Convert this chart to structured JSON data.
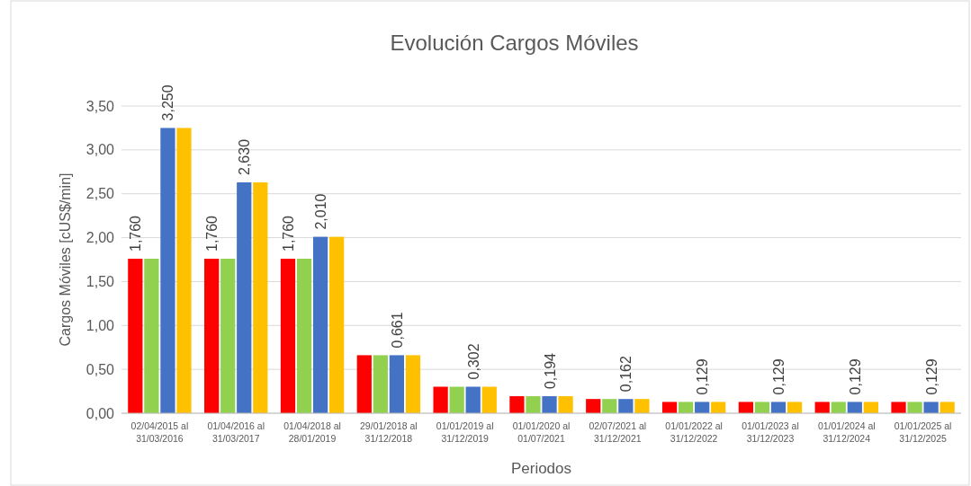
{
  "chart_data": {
    "type": "bar",
    "title": "Evolución Cargos Móviles",
    "xlabel": "Periodos",
    "ylabel": "Cargos Móviles [cUS$/min]",
    "categories": [
      "02/04/2015 al\n31/03/2016",
      "01/04/2016 al\n31/03/2017",
      "01/04/2018 al\n28/01/2019",
      "29/01/2018 al\n31/12/2018",
      "01/01/2019 al\n31/12/2019",
      "01/01/2020 al\n01/07/2021",
      "02/07/2021 al\n31/12/2021",
      "01/01/2022 al\n31/12/2022",
      "01/01/2023 al\n31/12/2023",
      "01/01/2024 al\n31/12/2024",
      "01/01/2025 al\n31/12/2025"
    ],
    "series": [
      {
        "color": "#ff0000",
        "values": [
          1.76,
          1.76,
          1.76,
          0.661,
          0.302,
          0.194,
          0.162,
          0.129,
          0.129,
          0.129,
          0.129
        ],
        "value_labels": [
          "1,760",
          "1,760",
          "1,760",
          null,
          null,
          null,
          null,
          null,
          null,
          null,
          null
        ]
      },
      {
        "color": "#92d050",
        "values": [
          1.76,
          1.76,
          1.76,
          0.661,
          0.302,
          0.194,
          0.162,
          0.129,
          0.129,
          0.129,
          0.129
        ]
      },
      {
        "color": "#4472c4",
        "values": [
          3.25,
          2.63,
          2.01,
          0.661,
          0.302,
          0.194,
          0.162,
          0.129,
          0.129,
          0.129,
          0.129
        ],
        "value_labels": [
          "3,250",
          "2,630",
          "2,010",
          "0,661",
          "0,302",
          "0,194",
          "0,162",
          "0,129",
          "0,129",
          "0,129",
          "0,129"
        ]
      },
      {
        "color": "#ffc000",
        "values": [
          3.25,
          2.63,
          2.01,
          0.661,
          0.302,
          0.194,
          0.162,
          0.129,
          0.129,
          0.129,
          0.129
        ]
      }
    ],
    "ylim": [
      0,
      3.5
    ],
    "yticks": [
      {
        "value": 0,
        "label": "0,00"
      },
      {
        "value": 0.5,
        "label": "0,50"
      },
      {
        "value": 1,
        "label": "1,00"
      },
      {
        "value": 1.5,
        "label": "1,50"
      },
      {
        "value": 2,
        "label": "2,00"
      },
      {
        "value": 2.5,
        "label": "2,50"
      },
      {
        "value": 3,
        "label": "3,00"
      },
      {
        "value": 3.5,
        "label": "3,50"
      }
    ],
    "grid": "y"
  }
}
